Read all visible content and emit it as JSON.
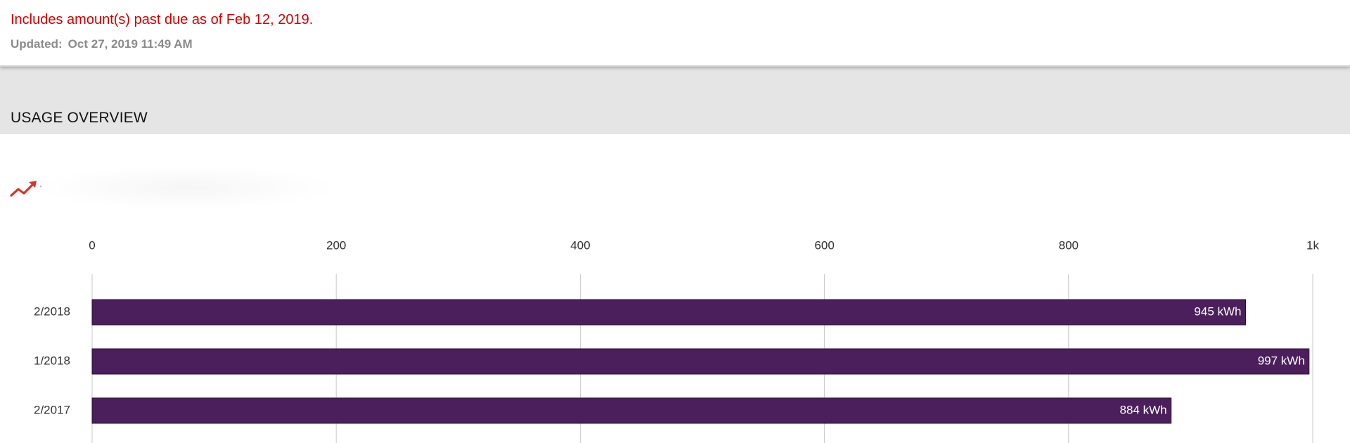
{
  "notice": {
    "past_due_text": "Includes amount(s) past due as of Feb 12, 2019.",
    "updated_label": "Updated:",
    "updated_value": "Oct 27, 2019 11:49 AM"
  },
  "section": {
    "title": "USAGE OVERVIEW",
    "trend_icon": "trending-up-icon"
  },
  "colors": {
    "alert_red": "#cc0000",
    "bar_purple": "#4b1f5c",
    "icon_red": "#d0382b"
  },
  "chart_data": {
    "type": "bar",
    "orientation": "horizontal",
    "categories": [
      "2/2018",
      "1/2018",
      "2/2017"
    ],
    "values": [
      945,
      997,
      884
    ],
    "data_labels": [
      "945 kWh",
      "997 kWh",
      "884 kWh"
    ],
    "unit": "kWh",
    "xlim": [
      0,
      1000
    ],
    "xticks": [
      0,
      200,
      400,
      600,
      800,
      1000
    ],
    "xtick_labels": [
      "0",
      "200",
      "400",
      "600",
      "800",
      "1k"
    ],
    "axis_position": "top",
    "grid": true,
    "title": "",
    "xlabel": "",
    "ylabel": ""
  }
}
